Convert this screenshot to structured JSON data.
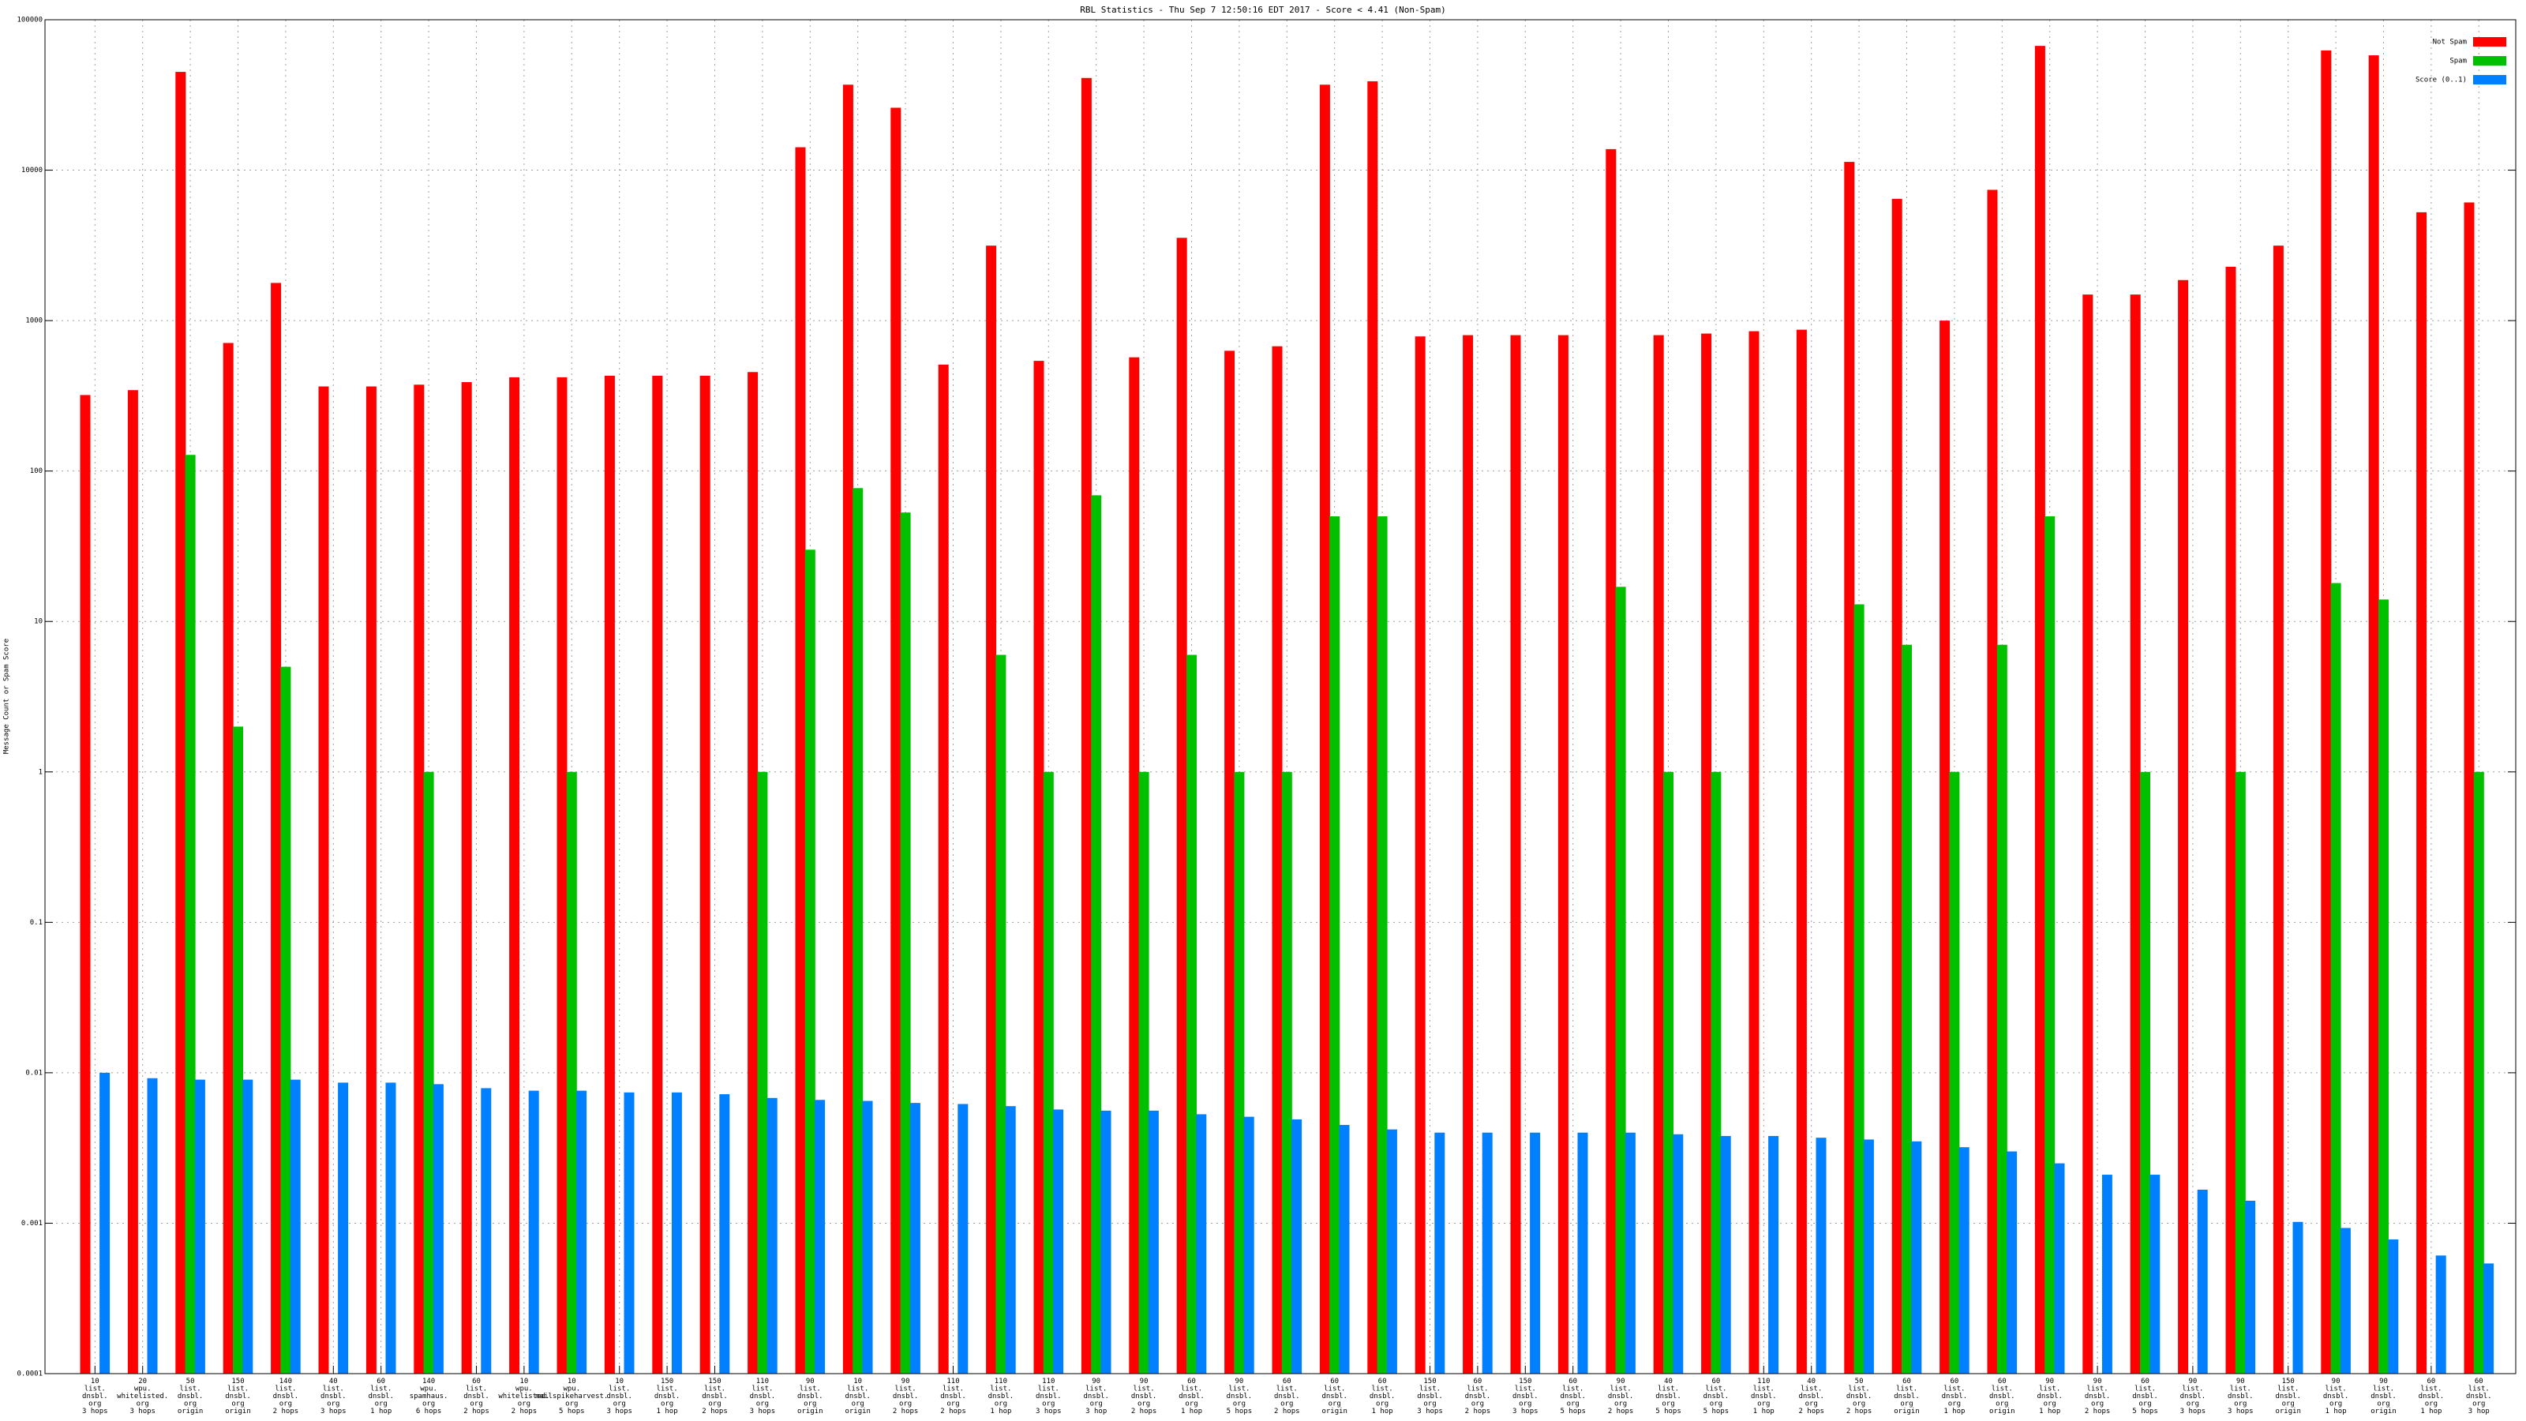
{
  "chart_data": {
    "type": "bar",
    "title": "RBL Statistics - Thu Sep  7 12:50:16 EDT 2017 - Score < 4.41 (Non-Spam)",
    "y_label": "Message Count or Spam Score",
    "log_scale": true,
    "grid": true,
    "legend": "top-right",
    "ylim": [
      0.0001,
      100000
    ],
    "yticks": [
      0.0001,
      0.001,
      0.01,
      0.1,
      1,
      10,
      100,
      1000,
      10000,
      100000
    ],
    "categories": [
      "10\nlist.\ndnsbl.\norg\n3 hops",
      "20\nwpu.\nwhitelisted.\norg\n3 hops",
      "50\nlist.\ndnsbl.\norg\norigin",
      "150\nlist.\ndnsbl.\norg\norigin",
      "140\nlist.\ndnsbl.\norg\n2 hops",
      "40\nlist.\ndnsbl.\norg\n3 hops",
      "60\nlist.\ndnsbl.\norg\n1 hop",
      "140\nwpu.\nspamhaus.\norg\n6 hops",
      "60\nlist.\ndnsbl.\norg\n2 hops",
      "10\nwpu.\nwhitelisted.\norg\n2 hops",
      "10\nwpu.\nmailspikeharvest.\norg\n5 hops",
      "10\nlist.\ndnsbl.\norg\n3 hops",
      "150\nlist.\ndnsbl.\norg\n1 hop",
      "150\nlist.\ndnsbl.\norg\n2 hops",
      "110\nlist.\ndnsbl.\norg\n3 hops",
      "90\nlist.\ndnsbl.\norg\norigin",
      "10\nlist.\ndnsbl.\norg\norigin",
      "90\nlist.\ndnsbl.\norg\n2 hops",
      "110\nlist.\ndnsbl.\norg\n2 hops",
      "110\nlist.\ndnsbl.\norg\n1 hop",
      "110\nlist.\ndnsbl.\norg\n3 hops",
      "90\nlist.\ndnsbl.\norg\n3 hop",
      "90\nlist.\ndnsbl.\norg\n2 hops",
      "60\nlist.\ndnsbl.\norg\n1 hop",
      "90\nlist.\ndnsbl.\norg\n5 hops",
      "60\nlist.\ndnsbl.\norg\n2 hops",
      "60\nlist.\ndnsbl.\norg\norigin",
      "60\nlist.\ndnsbl.\norg\n1 hop",
      "150\nlist.\ndnsbl.\norg\n3 hops",
      "60\nlist.\ndnsbl.\norg\n2 hops",
      "150\nlist.\ndnsbl.\norg\n3 hops",
      "60\nlist.\ndnsbl.\norg\n5 hops",
      "90\nlist.\ndnsbl.\norg\n2 hops",
      "40\nlist.\ndnsbl.\norg\n5 hops",
      "60\nlist.\ndnsbl.\norg\n5 hops",
      "110\nlist.\ndnsbl.\norg\n1 hop",
      "40\nlist.\ndnsbl.\norg\n2 hops",
      "50\nlist.\ndnsbl.\norg\n2 hops",
      "60\nlist.\ndnsbl.\norg\norigin",
      "60\nlist.\ndnsbl.\norg\n1 hop",
      "60\nlist.\ndnsbl.\norg\norigin",
      "90\nlist.\ndnsbl.\norg\n1 hop",
      "90\nlist.\ndnsbl.\norg\n2 hops",
      "60\nlist.\ndnsbl.\norg\n5 hops",
      "90\nlist.\ndnsbl.\norg\n3 hops",
      "90\nlist.\ndnsbl.\norg\n3 hops",
      "150\nlist.\ndnsbl.\norg\norigin",
      "90\nlist.\ndnsbl.\norg\n1 hop",
      "90\nlist.\ndnsbl.\norg\norigin",
      "60\nlist.\ndnsbl.\norg\n1 hop",
      "60\nlist.\ndnsbl.\norg\n3 hop"
    ],
    "series": [
      {
        "name": "Not Spam",
        "color": "#ff0000",
        "values": [
          320,
          345,
          45000,
          710,
          1780,
          365,
          365,
          375,
          390,
          420,
          420,
          430,
          430,
          430,
          455,
          14200,
          37000,
          26000,
          510,
          3150,
          540,
          41000,
          570,
          3550,
          630,
          675,
          37000,
          39000,
          785,
          800,
          800,
          800,
          13800,
          800,
          820,
          850,
          870,
          11350,
          6450,
          1000,
          7400,
          67000,
          1490,
          1490,
          1860,
          2280,
          3150,
          62500,
          58000,
          5250,
          6100
        ]
      },
      {
        "name": "Spam",
        "color": "#00c000",
        "values": [
          null,
          null,
          128,
          2,
          5,
          null,
          null,
          1,
          null,
          null,
          1,
          null,
          null,
          null,
          1,
          30,
          77,
          53,
          null,
          6,
          1,
          69,
          1,
          6,
          1,
          1,
          50,
          50,
          null,
          null,
          null,
          null,
          17,
          1,
          1,
          null,
          null,
          13,
          7,
          1,
          7,
          50,
          null,
          1,
          null,
          1,
          null,
          18,
          14,
          null,
          1
        ]
      },
      {
        "name": "Score (0..1)",
        "color": "#0080ff",
        "values": [
          0.01,
          0.0092,
          0.009,
          0.009,
          0.009,
          0.0086,
          0.0086,
          0.0084,
          0.0079,
          0.0076,
          0.0076,
          0.0074,
          0.0074,
          0.0072,
          0.0068,
          0.0066,
          0.0065,
          0.0063,
          0.0062,
          0.006,
          0.0057,
          0.0056,
          0.0056,
          0.0053,
          0.0051,
          0.0049,
          0.0045,
          0.0042,
          0.004,
          0.004,
          0.004,
          0.004,
          0.004,
          0.0039,
          0.0038,
          0.0038,
          0.0037,
          0.0036,
          0.0035,
          0.0032,
          0.003,
          0.0025,
          0.0021,
          0.0021,
          0.00167,
          0.00141,
          0.00102,
          0.00093,
          0.00078,
          0.00061,
          0.00054
        ]
      }
    ]
  }
}
